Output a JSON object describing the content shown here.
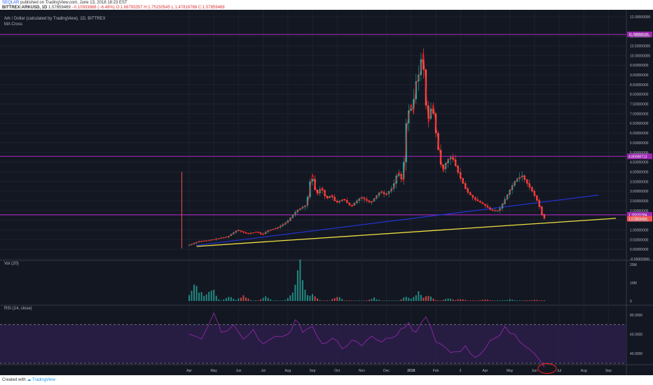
{
  "header": {
    "publisher": "SEQLAR",
    "published_text": "published on TradingView.com, June 13, 2018 18:23 EST",
    "symbol_line": "BITTREX:ARKUSD, 1D",
    "last": "1.57859469",
    "change": "−0.10933888 (−6.48%)",
    "ohlc": "O:1.68793357 H:1.75150545 L:1.47816786 C:1.57859469"
  },
  "legend": {
    "title": "Ark / Dollar (calculated by TradingView), 1D, BITTREX",
    "indicator": "MA Cross",
    "vol_label": "Vol (20)",
    "rsi_label": "RSI (14, close)"
  },
  "footer": {
    "created_with": "Created with",
    "brand": "TradingView"
  },
  "colors": {
    "background": "#131722",
    "up": "#26a69a",
    "down": "#ef5350",
    "ma": "#ff1a1a",
    "level": "#9c27b0",
    "trend_blue": "#2233cc",
    "trend_yellow": "#f0e040",
    "rsi": "#9c27b0"
  },
  "chart_data": {
    "type": "candlestick",
    "x_ticks": [
      "Apr",
      "May",
      "Jun",
      "Jul",
      "Aug",
      "Sep",
      "Oct",
      "Nov",
      "Dec",
      "2018",
      "Feb",
      "2",
      "Apr",
      "May",
      "Jun",
      "Jul",
      "Aug",
      "Sep"
    ],
    "price_ticks": [
      "12.00000000",
      "11.00000000",
      "10.50000000",
      "10.00000000",
      "9.50000000",
      "9.00000000",
      "8.50000000",
      "8.00000000",
      "7.50000000",
      "7.00000000",
      "6.50000000",
      "6.00000000",
      "5.50000000",
      "5.00000000",
      "4.50000000",
      "4.00000000",
      "3.50000000",
      "3.00000000",
      "2.50000000",
      "2.00000000",
      "1.50000000",
      "1.00000000",
      "0.50000000",
      "0.00000000",
      "-0.50000000"
    ],
    "price_range": [
      -0.5,
      12.0
    ],
    "price_series": {
      "x": [
        0,
        0.4,
        0.8,
        1.2,
        1.6,
        2.0,
        2.4,
        2.8,
        3.0,
        3.2,
        3.6,
        4.0,
        4.4,
        4.8,
        5.0,
        5.2,
        5.4,
        5.6,
        5.8,
        6.0,
        6.3,
        6.6,
        7.0,
        7.4,
        7.8,
        8.0,
        8.3,
        8.5,
        8.7,
        8.85,
        9.0,
        9.1,
        9.2,
        9.35,
        9.5,
        9.7,
        9.9,
        10.1,
        10.3,
        10.5,
        10.7,
        11.0,
        11.3,
        11.6,
        12.0,
        12.3,
        12.6,
        12.9,
        13.1,
        13.3,
        13.55,
        13.8,
        14.0,
        14.2,
        14.4
      ],
      "values": [
        0.2,
        0.4,
        0.45,
        0.55,
        0.65,
        1.0,
        0.8,
        0.9,
        0.75,
        0.95,
        1.1,
        1.4,
        2.0,
        2.3,
        3.9,
        2.8,
        3.2,
        2.6,
        2.8,
        2.4,
        2.6,
        2.2,
        2.7,
        2.4,
        3.0,
        2.8,
        3.2,
        4.0,
        3.5,
        6.5,
        7.5,
        7.0,
        8.5,
        9.0,
        10.2,
        6.5,
        7.5,
        5.5,
        4.0,
        4.6,
        4.8,
        3.8,
        3.0,
        2.6,
        2.3,
        2.0,
        2.0,
        2.7,
        3.2,
        3.6,
        3.8,
        3.3,
        2.9,
        2.4,
        1.58
      ]
    },
    "last_price": 1.57859469,
    "horizontal_levels": [
      {
        "label": "11.08898165",
        "value": 11.09
      },
      {
        "label": "4.80098713",
        "value": 4.8
      },
      {
        "label": "1.78370784",
        "value": 1.78
      }
    ],
    "last_price_label": "1.57859469",
    "trendlines": [
      {
        "name": "blue",
        "from": [
          0.3,
          0.2
        ],
        "to": [
          16.6,
          2.8
        ]
      },
      {
        "name": "yellow",
        "from": [
          0.3,
          0.15
        ],
        "to": [
          17.3,
          1.6
        ]
      }
    ],
    "volume_ticks": [
      "20M",
      "10M",
      "0"
    ],
    "volume_range": [
      0,
      20
    ],
    "volume": [
      {
        "x": 0.2,
        "v": 12
      },
      {
        "x": 0.5,
        "v": 5
      },
      {
        "x": 0.9,
        "v": 9
      },
      {
        "x": 1.6,
        "v": 3
      },
      {
        "x": 2.2,
        "v": 4
      },
      {
        "x": 3.1,
        "v": 3
      },
      {
        "x": 4.2,
        "v": 6
      },
      {
        "x": 4.5,
        "v": 24
      },
      {
        "x": 5.0,
        "v": 4
      },
      {
        "x": 6.0,
        "v": 3
      },
      {
        "x": 7.5,
        "v": 2
      },
      {
        "x": 8.8,
        "v": 3
      },
      {
        "x": 9.3,
        "v": 6
      },
      {
        "x": 9.7,
        "v": 4
      },
      {
        "x": 10.5,
        "v": 2
      },
      {
        "x": 11.0,
        "v": 1.5
      },
      {
        "x": 12.0,
        "v": 1.2
      },
      {
        "x": 13.0,
        "v": 1
      },
      {
        "x": 14.0,
        "v": 0.8
      }
    ],
    "rsi_ticks": [
      "80.0000",
      "60.0000",
      "40.0000"
    ],
    "rsi_range": [
      30,
      90
    ],
    "rsi_band": [
      30,
      70
    ],
    "rsi": {
      "x": [
        0,
        0.5,
        1.0,
        1.3,
        1.8,
        2.2,
        2.6,
        3.0,
        3.5,
        4.0,
        4.3,
        4.6,
        5.0,
        5.4,
        5.8,
        6.2,
        6.6,
        7.0,
        7.4,
        7.8,
        8.2,
        8.6,
        8.9,
        9.2,
        9.6,
        10.0,
        10.4,
        10.8,
        11.2,
        11.6,
        12.0,
        12.4,
        12.8,
        13.2,
        13.6,
        14.0,
        14.4
      ],
      "values": [
        60,
        55,
        82,
        62,
        70,
        55,
        65,
        50,
        58,
        60,
        75,
        62,
        68,
        50,
        56,
        45,
        54,
        48,
        58,
        52,
        56,
        66,
        72,
        62,
        78,
        52,
        46,
        42,
        48,
        36,
        45,
        56,
        68,
        60,
        48,
        40,
        26
      ]
    },
    "annotation": "red ellipse around RSI low"
  }
}
